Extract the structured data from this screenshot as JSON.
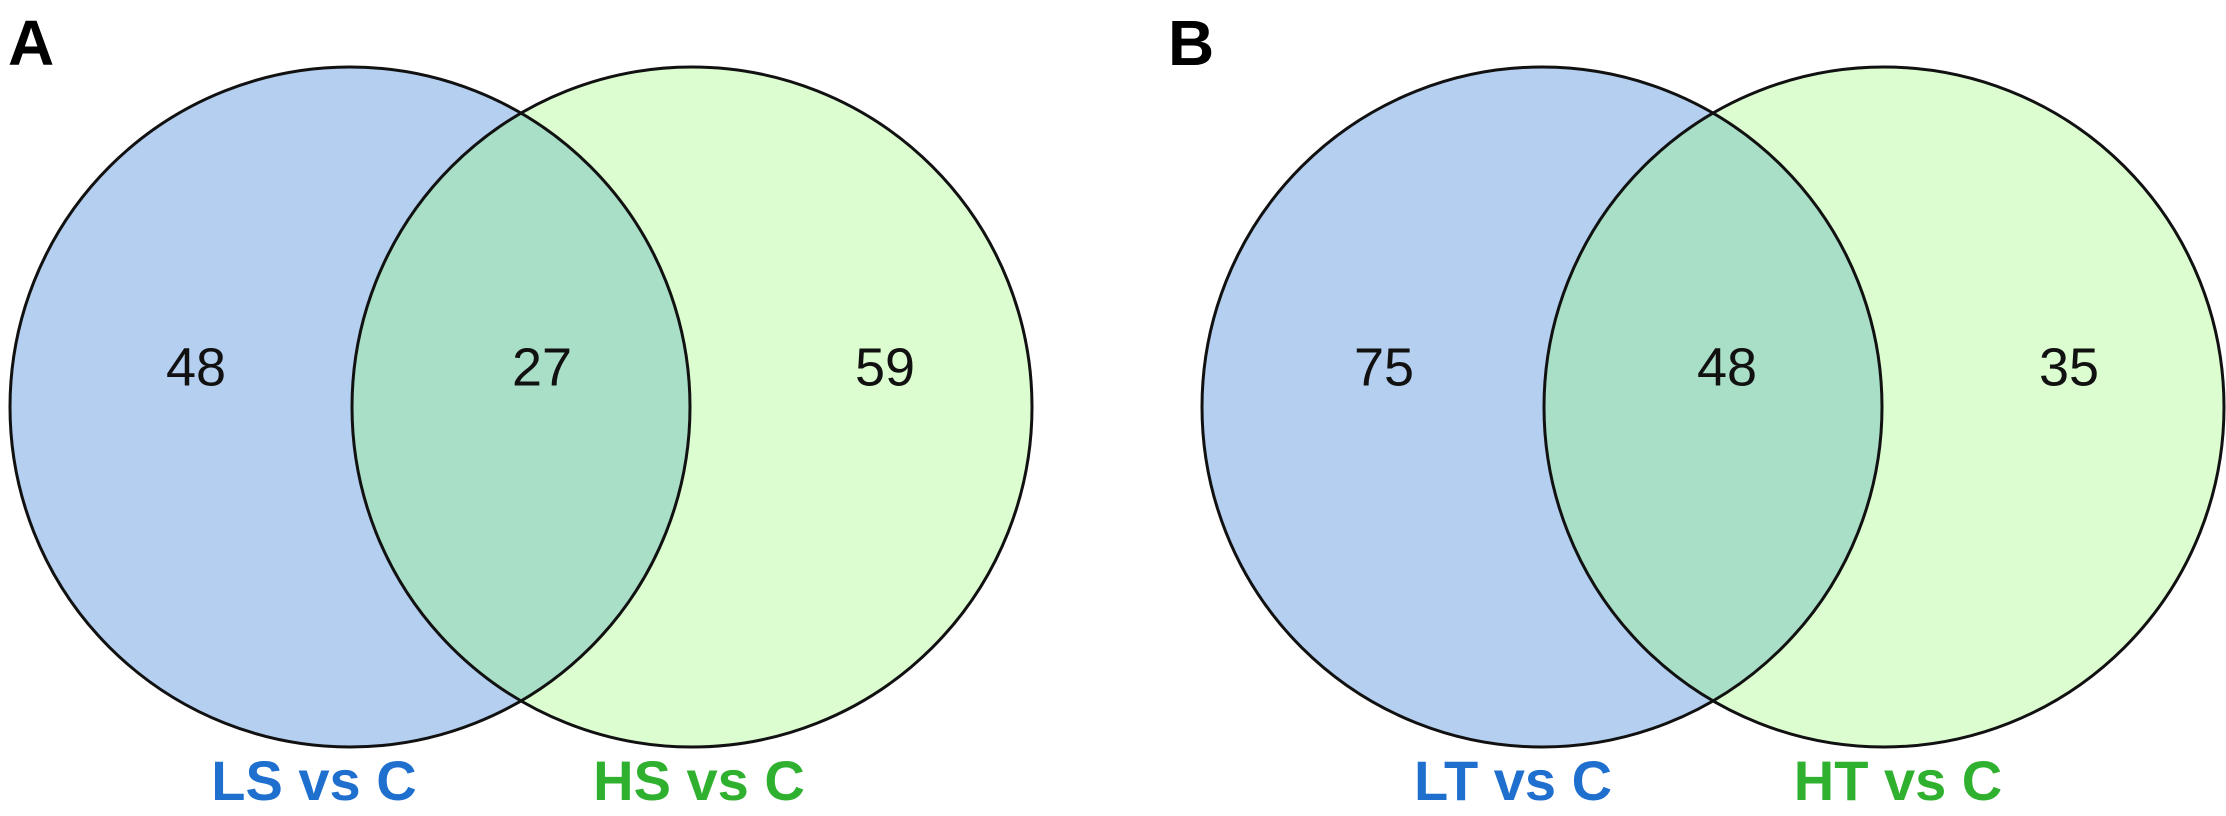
{
  "panels": [
    {
      "label": "A",
      "sets": [
        "LS vs C",
        "HS vs C"
      ],
      "regions": [
        "48",
        "27",
        "59"
      ]
    },
    {
      "label": "B",
      "sets": [
        "LT vs C",
        "HT vs C"
      ],
      "regions": [
        "75",
        "48",
        "35"
      ]
    }
  ]
}
